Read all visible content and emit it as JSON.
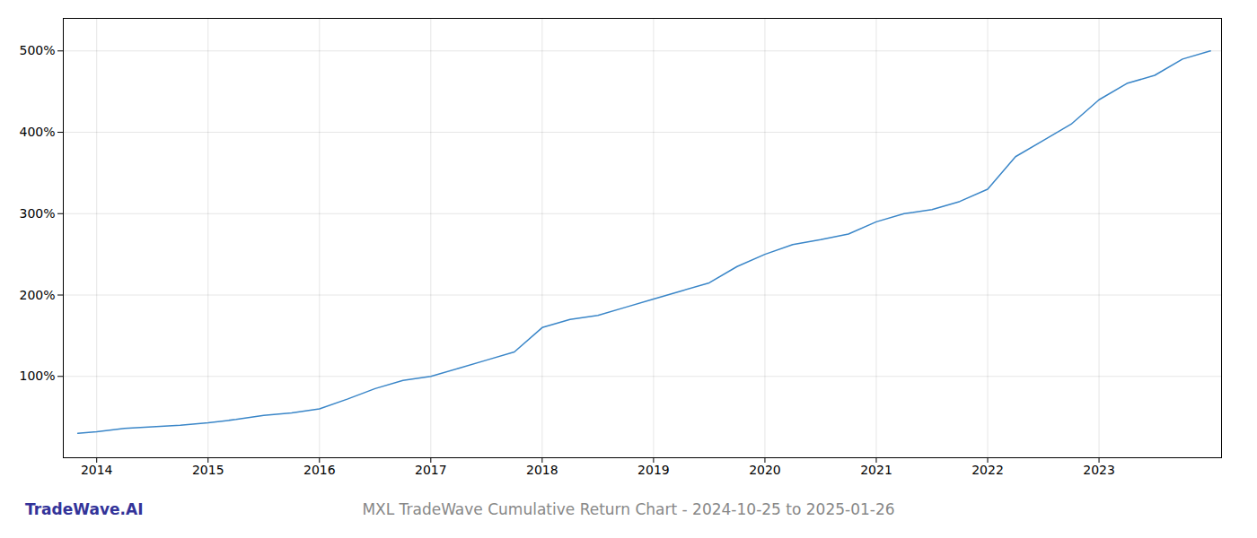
{
  "chart_data": {
    "type": "line",
    "title": "MXL TradeWave Cumulative Return Chart - 2024-10-25 to 2025-01-26",
    "annotations": [
      "TradeWave.AI"
    ],
    "x": [
      2013.83,
      2014.0,
      2014.25,
      2014.5,
      2014.75,
      2015.0,
      2015.25,
      2015.5,
      2015.75,
      2016.0,
      2016.25,
      2016.5,
      2016.75,
      2017.0,
      2017.25,
      2017.5,
      2017.75,
      2018.0,
      2018.25,
      2018.5,
      2018.75,
      2019.0,
      2019.25,
      2019.5,
      2019.75,
      2020.0,
      2020.25,
      2020.5,
      2020.75,
      2021.0,
      2021.25,
      2021.5,
      2021.75,
      2022.0,
      2022.25,
      2022.5,
      2022.75,
      2023.0,
      2023.25,
      2023.5,
      2023.75,
      2024.0
    ],
    "values": [
      30,
      32,
      36,
      38,
      40,
      43,
      47,
      52,
      55,
      60,
      72,
      85,
      95,
      100,
      110,
      120,
      130,
      160,
      170,
      175,
      185,
      195,
      205,
      215,
      235,
      250,
      262,
      268,
      275,
      290,
      300,
      305,
      315,
      330,
      370,
      390,
      410,
      440,
      460,
      470,
      490,
      500
    ],
    "color": "#3a86c8",
    "xlim": [
      2013.7,
      2024.1
    ],
    "ylim": [
      0,
      540
    ],
    "xticks": [
      2014,
      2015,
      2016,
      2017,
      2018,
      2019,
      2020,
      2021,
      2022,
      2023
    ],
    "yticks": [
      {
        "value": 100,
        "label": "100%"
      },
      {
        "value": 200,
        "label": "200%"
      },
      {
        "value": 300,
        "label": "300%"
      },
      {
        "value": 400,
        "label": "400%"
      },
      {
        "value": 500,
        "label": "500%"
      }
    ],
    "grid": true
  }
}
